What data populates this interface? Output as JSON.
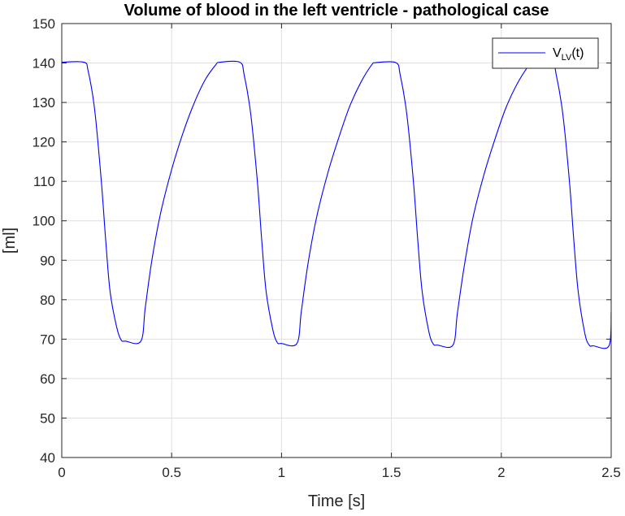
{
  "chart_data": {
    "type": "line",
    "title": "Volume of blood in the left ventricle - pathological case",
    "xlabel": "Time [s]",
    "ylabel": "[ml]",
    "xlim": [
      0,
      2.5
    ],
    "ylim": [
      40,
      150
    ],
    "x_ticks": [
      0,
      0.5,
      1,
      1.5,
      2,
      2.5
    ],
    "x_tick_labels": [
      "0",
      "0.5",
      "1",
      "1.5",
      "2",
      "2.5"
    ],
    "y_ticks": [
      40,
      50,
      60,
      70,
      80,
      90,
      100,
      110,
      120,
      130,
      140,
      150
    ],
    "y_tick_labels": [
      "40",
      "50",
      "60",
      "70",
      "80",
      "90",
      "100",
      "110",
      "120",
      "130",
      "140",
      "150"
    ],
    "grid": true,
    "legend": {
      "placement": "top-right",
      "base": "V",
      "subscript": "LV",
      "suffix": "(t)"
    },
    "series": [
      {
        "name": "V_LV(t)",
        "color": "#0000ff",
        "points": [
          [
            0.0,
            140.2
          ],
          [
            0.1,
            140.2
          ],
          [
            0.12,
            138.0
          ],
          [
            0.15,
            128.0
          ],
          [
            0.18,
            110.0
          ],
          [
            0.2,
            95.0
          ],
          [
            0.22,
            82.0
          ],
          [
            0.25,
            73.0
          ],
          [
            0.27,
            69.8
          ],
          [
            0.29,
            69.5
          ],
          [
            0.36,
            69.5
          ],
          [
            0.38,
            78.0
          ],
          [
            0.41,
            90.0
          ],
          [
            0.45,
            102.0
          ],
          [
            0.5,
            113.0
          ],
          [
            0.55,
            122.0
          ],
          [
            0.6,
            129.5
          ],
          [
            0.65,
            135.5
          ],
          [
            0.7,
            139.5
          ],
          [
            0.72,
            140.2
          ],
          [
            0.81,
            140.2
          ],
          [
            0.83,
            137.0
          ],
          [
            0.86,
            127.0
          ],
          [
            0.89,
            110.0
          ],
          [
            0.91,
            95.0
          ],
          [
            0.93,
            82.0
          ],
          [
            0.96,
            72.5
          ],
          [
            0.98,
            69.2
          ],
          [
            1.0,
            68.9
          ],
          [
            1.07,
            68.9
          ],
          [
            1.09,
            77.0
          ],
          [
            1.12,
            89.0
          ],
          [
            1.16,
            101.0
          ],
          [
            1.21,
            112.0
          ],
          [
            1.26,
            121.0
          ],
          [
            1.31,
            129.0
          ],
          [
            1.36,
            135.0
          ],
          [
            1.41,
            139.5
          ],
          [
            1.43,
            140.1
          ],
          [
            1.52,
            140.1
          ],
          [
            1.54,
            137.0
          ],
          [
            1.57,
            127.0
          ],
          [
            1.6,
            110.0
          ],
          [
            1.62,
            95.0
          ],
          [
            1.64,
            82.0
          ],
          [
            1.67,
            72.0
          ],
          [
            1.69,
            68.8
          ],
          [
            1.71,
            68.5
          ],
          [
            1.78,
            68.5
          ],
          [
            1.8,
            76.5
          ],
          [
            1.83,
            88.0
          ],
          [
            1.87,
            100.5
          ],
          [
            1.92,
            111.5
          ],
          [
            1.97,
            120.5
          ],
          [
            2.02,
            128.5
          ],
          [
            2.07,
            134.5
          ],
          [
            2.12,
            139.0
          ],
          [
            2.14,
            140.0
          ],
          [
            2.23,
            140.0
          ],
          [
            2.25,
            137.0
          ],
          [
            2.28,
            127.0
          ],
          [
            2.31,
            110.0
          ],
          [
            2.33,
            95.0
          ],
          [
            2.35,
            82.0
          ],
          [
            2.38,
            71.5
          ],
          [
            2.4,
            68.5
          ],
          [
            2.42,
            68.3
          ],
          [
            2.49,
            68.3
          ],
          [
            2.5,
            77.0
          ]
        ]
      }
    ]
  }
}
